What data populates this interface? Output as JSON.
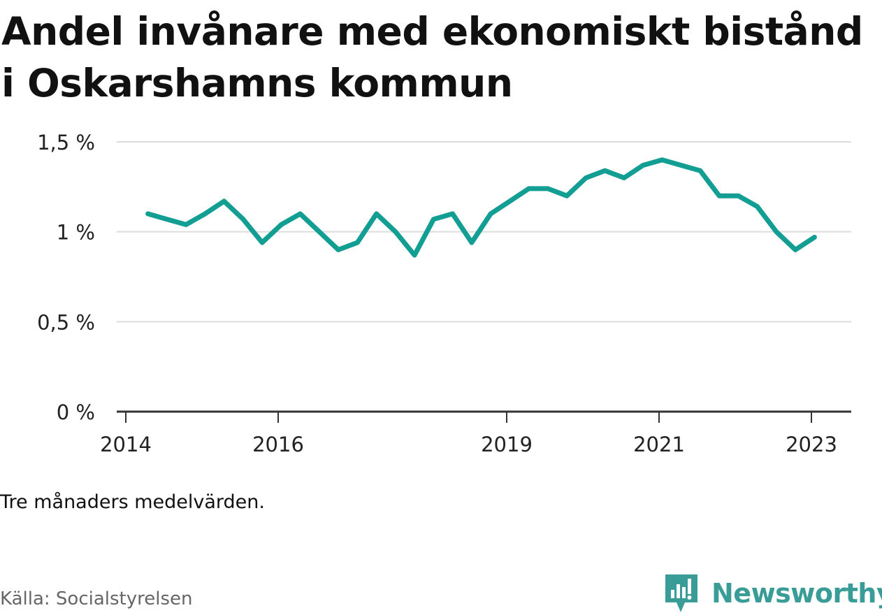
{
  "title": "Andel invånare med ekonomiskt bistånd i Oskarshamns kommun",
  "note": "Tre månaders medelvärden.",
  "source": "Källa: Socialstyrelsen",
  "brand": {
    "name": "Newsworthy",
    "color": "#3a9c96",
    "icon": "newsworthy-logo-icon"
  },
  "chart_data": {
    "type": "line",
    "title": "Andel invånare med ekonomiskt bistånd i Oskarshamns kommun",
    "xlabel": "",
    "ylabel": "",
    "ylim": [
      0,
      1.5
    ],
    "yticks": [
      {
        "value": 0,
        "label": "0 %"
      },
      {
        "value": 0.5,
        "label": "0,5 %"
      },
      {
        "value": 1,
        "label": "1 %"
      },
      {
        "value": 1.5,
        "label": "1,5 %"
      }
    ],
    "xlim": [
      2014.0,
      2023.5
    ],
    "xticks": [
      {
        "value": 2014,
        "label": "2014"
      },
      {
        "value": 2016,
        "label": "2016"
      },
      {
        "value": 2019,
        "label": "2019"
      },
      {
        "value": 2021,
        "label": "2021"
      },
      {
        "value": 2023,
        "label": "2023"
      }
    ],
    "grid": true,
    "color": "#139e94",
    "series": [
      {
        "x": [
          2014.29,
          2014.54,
          2014.79,
          2015.04,
          2015.29,
          2015.54,
          2015.79,
          2016.04,
          2016.29,
          2016.54,
          2016.79,
          2017.04,
          2017.29,
          2017.54,
          2017.79,
          2018.04,
          2018.29,
          2018.54,
          2018.79,
          2019.04,
          2019.29,
          2019.54,
          2019.79,
          2020.04,
          2020.29,
          2020.54,
          2020.79,
          2021.04,
          2021.29,
          2021.54,
          2021.79,
          2022.04,
          2022.29,
          2022.54,
          2022.79,
          2023.04
        ],
        "y": [
          1.1,
          1.07,
          1.04,
          1.1,
          1.17,
          1.07,
          0.94,
          1.04,
          1.1,
          1.0,
          0.9,
          0.94,
          1.1,
          1.0,
          0.87,
          1.07,
          1.1,
          0.94,
          1.1,
          1.17,
          1.24,
          1.24,
          1.2,
          1.3,
          1.34,
          1.3,
          1.37,
          1.4,
          1.37,
          1.34,
          1.2,
          1.2,
          1.14,
          1.0,
          0.9,
          0.97
        ]
      }
    ]
  }
}
